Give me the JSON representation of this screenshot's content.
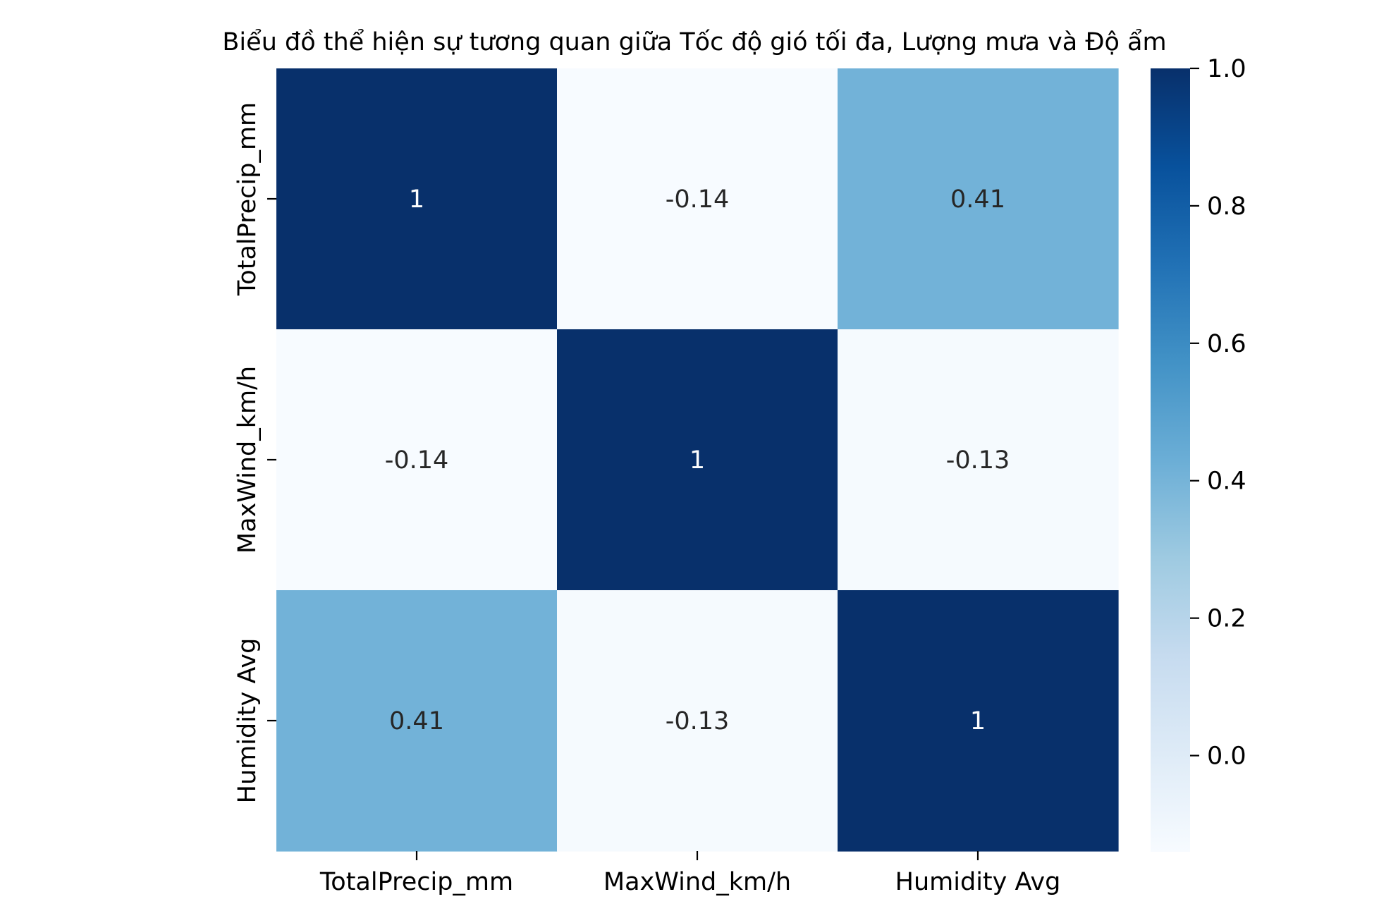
{
  "chart_data": {
    "type": "heatmap",
    "title": "Biểu đồ thể hiện sự tương quan giữa Tốc độ gió tối đa, Lượng mưa và Độ ẩm",
    "xlabel": "",
    "ylabel": "",
    "x_labels": [
      "TotalPrecip_mm",
      "MaxWind_km/h",
      "Humidity Avg"
    ],
    "y_labels": [
      "TotalPrecip_mm",
      "MaxWind_km/h",
      "Humidity Avg"
    ],
    "values": [
      [
        1,
        -0.14,
        0.41
      ],
      [
        -0.14,
        1,
        -0.13
      ],
      [
        0.41,
        -0.13,
        1
      ]
    ],
    "annotations": [
      [
        "1",
        "-0.14",
        "0.41"
      ],
      [
        "-0.14",
        "1",
        "-0.13"
      ],
      [
        "0.41",
        "-0.13",
        "1"
      ]
    ],
    "colormap": "Blues",
    "colorbar": {
      "vmin": -0.14,
      "vmax": 1.0,
      "ticks": [
        0.0,
        0.2,
        0.4,
        0.6,
        0.8,
        1.0
      ],
      "tick_labels": [
        "0.0",
        "0.2",
        "0.4",
        "0.6",
        "0.8",
        "1.0"
      ]
    },
    "colors": {
      "low": "#f7fbff",
      "high": "#08306b",
      "annotation_dark": "#262626",
      "annotation_light": "#ffffff"
    },
    "grid": false
  }
}
